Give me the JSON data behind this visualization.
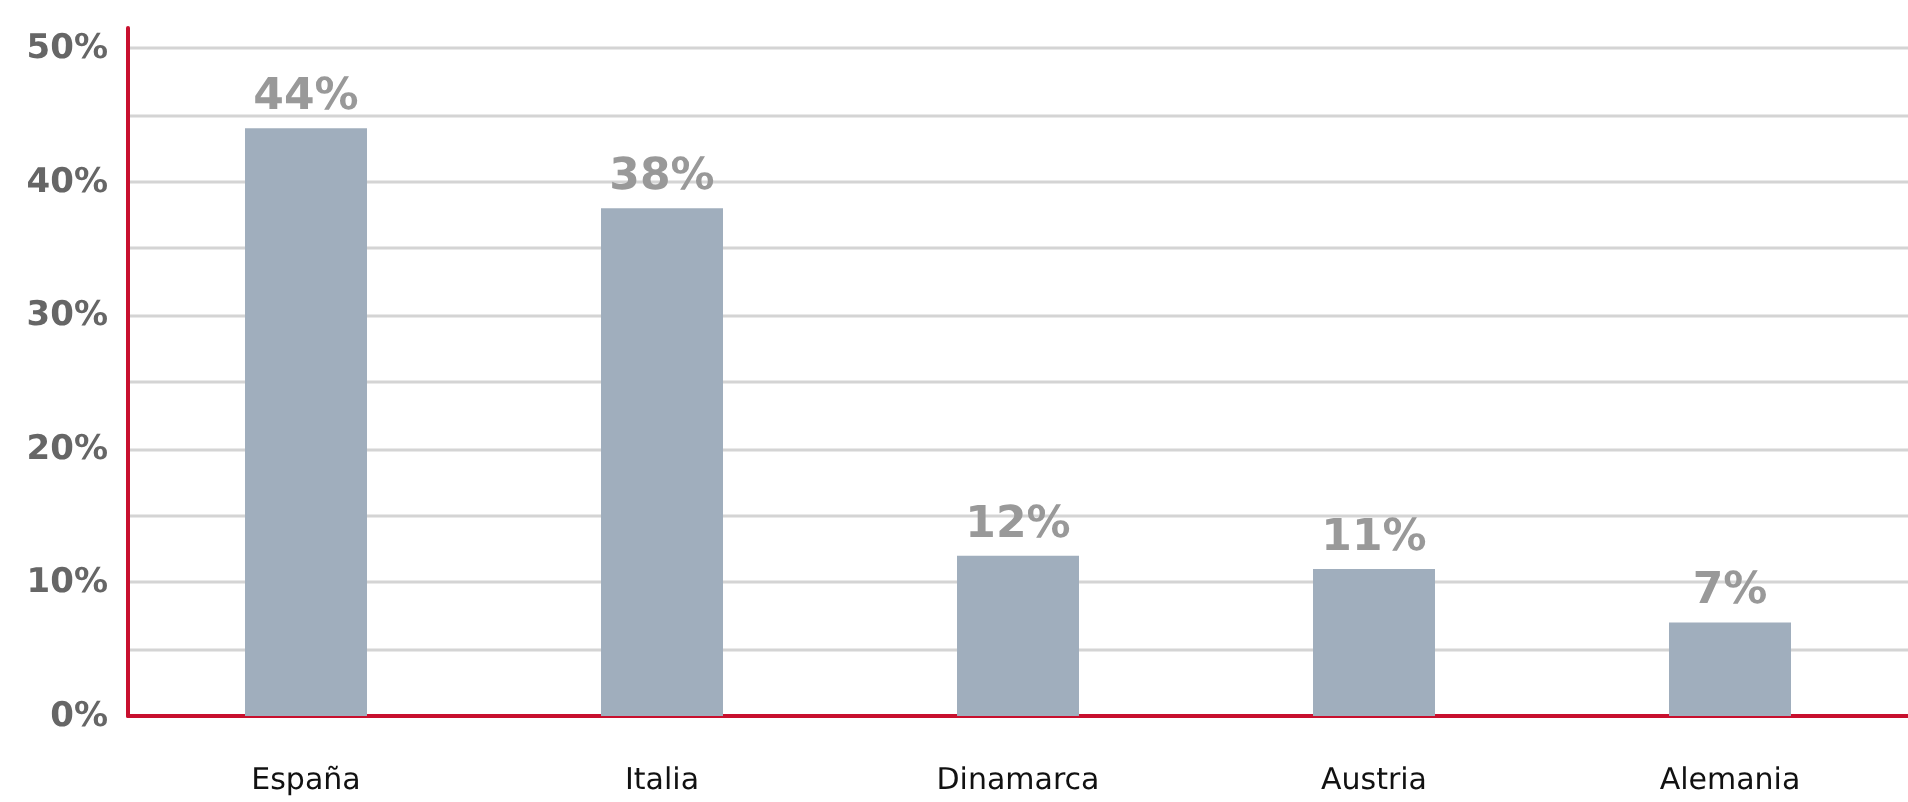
{
  "chart_data": {
    "type": "bar",
    "categories": [
      "España",
      "Italia",
      "Dinamarca",
      "Austria",
      "Alemania"
    ],
    "values": [
      44,
      38,
      12,
      11,
      7
    ],
    "color": "#a0aebd",
    "value_labels": [
      "44%",
      "38%",
      "12%",
      "11%",
      "7%"
    ],
    "ylim": [
      0,
      51.5
    ],
    "yticks": [
      {
        "value": 0,
        "label": "0%"
      },
      {
        "value": 5,
        "label": null
      },
      {
        "value": 10,
        "label": "10%"
      },
      {
        "value": 15,
        "label": null
      },
      {
        "value": 20,
        "label": "20%"
      },
      {
        "value": 25,
        "label": null
      },
      {
        "value": 30,
        "label": "30%"
      },
      {
        "value": 35,
        "label": null
      },
      {
        "value": 40,
        "label": "40%"
      },
      {
        "value": 45,
        "label": null
      },
      {
        "value": 50,
        "label": "50%"
      }
    ],
    "grid": true
  }
}
